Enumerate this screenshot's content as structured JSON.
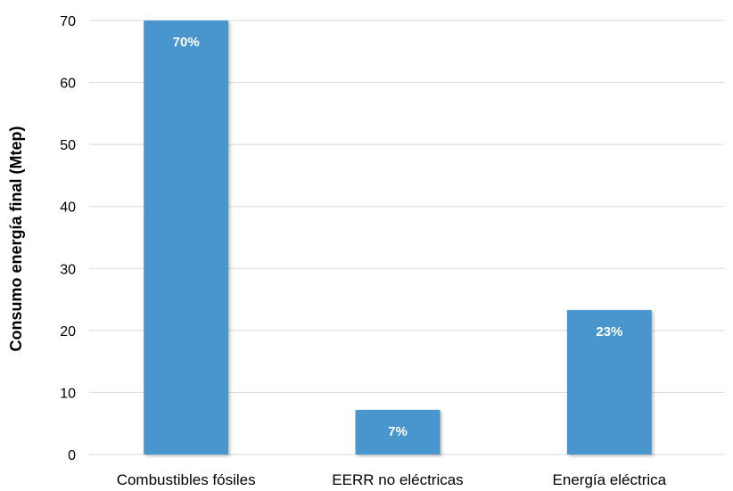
{
  "chart_data": {
    "type": "bar",
    "title": "",
    "xlabel": "",
    "ylabel": "Consumo energía final (Mtep)",
    "categories": [
      "Combustibles fósiles",
      "EERR no eléctricas",
      "Energía eléctrica"
    ],
    "values": [
      70,
      7.2,
      23.3
    ],
    "data_labels": [
      "70%",
      "7%",
      "23%"
    ],
    "ylim": [
      0,
      70
    ],
    "yticks": [
      0,
      10,
      20,
      30,
      40,
      50,
      60,
      70
    ],
    "grid": true,
    "legend": "none",
    "colors": {
      "bar": "#4a96cf",
      "grid": "#d9d9d9"
    }
  }
}
